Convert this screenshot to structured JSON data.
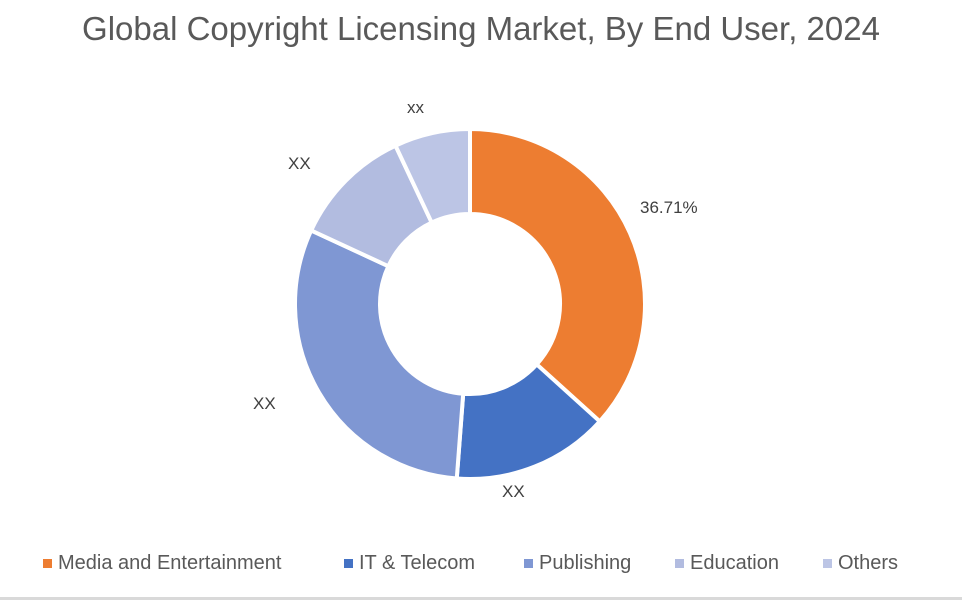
{
  "title": "Global Copyright Licensing Market, By End User, 2024",
  "chart_data": {
    "type": "pie",
    "variant": "donut",
    "title": "Global Copyright Licensing Market, By End User, 2024",
    "categories": [
      "Media and Entertainment",
      "IT & Telecom",
      "Publishing",
      "Education",
      "Others"
    ],
    "values": [
      36.71,
      14.5,
      30.7,
      11.1,
      7.0
    ],
    "value_unit": "%",
    "data_labels": [
      "36.71%",
      "XX",
      "XX",
      "XX",
      "xx"
    ],
    "colors": [
      "#ED7D31",
      "#4472C4",
      "#7F97D3",
      "#B2BCE0",
      "#BCC5E5"
    ],
    "legend_position": "bottom",
    "start_angle_deg": 0,
    "direction": "clockwise",
    "center": [
      470,
      304
    ],
    "outer_radius": 175,
    "inner_radius": 90
  },
  "legend": [
    {
      "label": "Media and Entertainment",
      "color": "#ED7D31"
    },
    {
      "label": "IT & Telecom",
      "color": "#4472C4"
    },
    {
      "label": "Publishing",
      "color": "#7F97D3"
    },
    {
      "label": "Education",
      "color": "#B2BCE0"
    },
    {
      "label": "Others",
      "color": "#BCC5E5"
    }
  ],
  "labels": {
    "media": "36.71%",
    "it": "XX",
    "publishing": "XX",
    "education": "XX",
    "others": "xx"
  }
}
